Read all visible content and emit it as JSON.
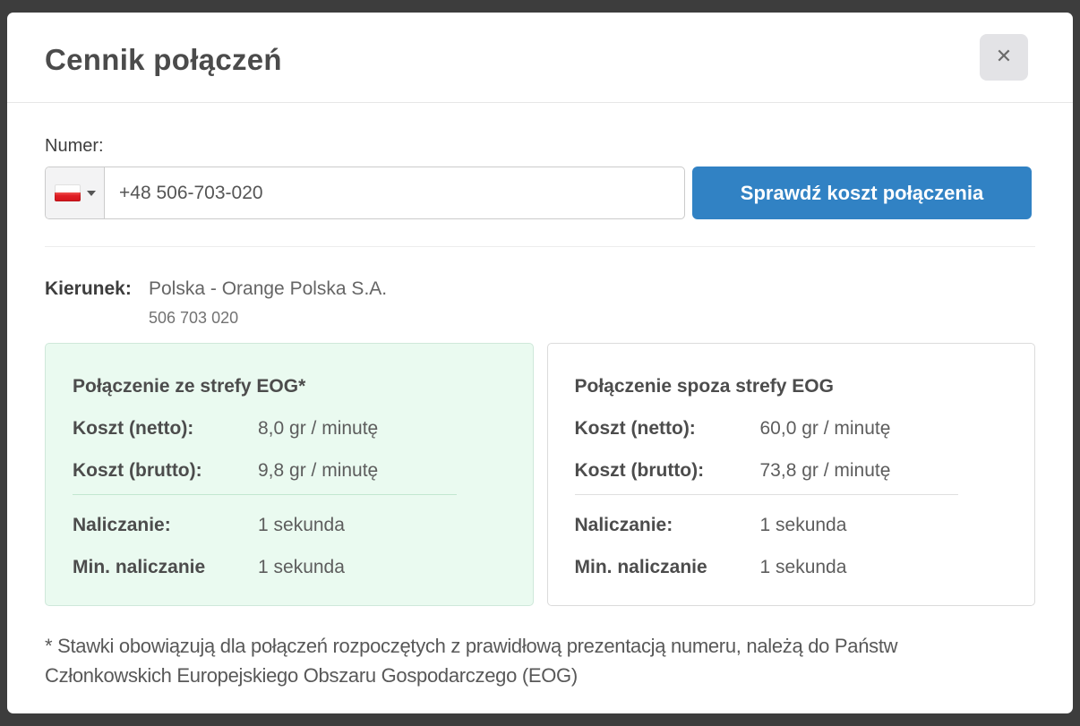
{
  "modal": {
    "title": "Cennik połączeń",
    "close_icon": "✕"
  },
  "form": {
    "number_label": "Numer:",
    "phone_value": "+48 506-703-020",
    "country_flag": "poland",
    "submit_label": "Sprawdź koszt połączenia"
  },
  "direction": {
    "label": "Kierunek:",
    "value": "Polska - Orange Polska S.A.",
    "number": "506 703 020"
  },
  "cards": [
    {
      "title": "Połączenie ze strefy EOG*",
      "highlighted": true,
      "rows": [
        {
          "label": "Koszt (netto):",
          "value": "8,0 gr / minutę"
        },
        {
          "label": "Koszt (brutto):",
          "value": "9,8 gr / minutę"
        },
        {
          "label": "Naliczanie:",
          "value": "1 sekunda"
        },
        {
          "label": "Min. naliczanie",
          "value": "1 sekunda"
        }
      ]
    },
    {
      "title": "Połączenie spoza strefy EOG",
      "highlighted": false,
      "rows": [
        {
          "label": "Koszt (netto):",
          "value": "60,0 gr / minutę"
        },
        {
          "label": "Koszt (brutto):",
          "value": "73,8 gr / minutę"
        },
        {
          "label": "Naliczanie:",
          "value": "1 sekunda"
        },
        {
          "label": "Min. naliczanie",
          "value": "1 sekunda"
        }
      ]
    }
  ],
  "footnote": {
    "line1": "* Stawki obowiązują dla połączeń rozpoczętych z prawidłową prezentacją numeru, należą do Państw",
    "line2": "Członkowskich Europejskiego Obszaru Gospodarczego (EOG)"
  },
  "colors": {
    "accent_blue": "#3182c4",
    "highlight_green_bg": "#eafaf0",
    "highlight_green_border": "#cfe8da",
    "backdrop": "#3d3d3d",
    "flag_red": "#e01f26"
  }
}
